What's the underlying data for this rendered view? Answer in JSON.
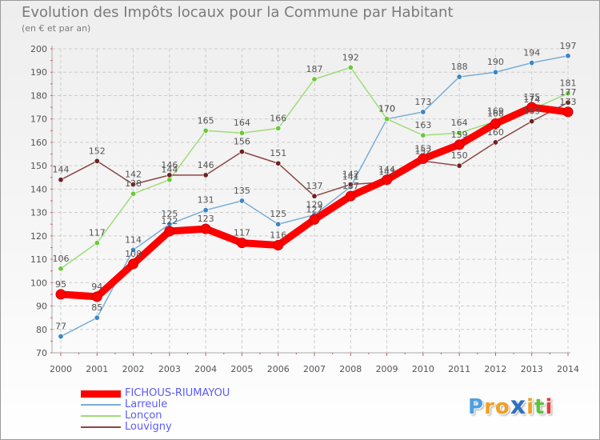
{
  "chart_data": {
    "type": "line",
    "title": "Evolution des Impôts locaux pour la Commune par Habitant",
    "subtitle": "(en € et par an)",
    "xlabel": "",
    "ylabel": "",
    "ylim": [
      70,
      200
    ],
    "yticks": [
      70,
      80,
      90,
      100,
      110,
      120,
      130,
      140,
      150,
      160,
      170,
      180,
      190,
      200
    ],
    "categories": [
      "2000",
      "2001",
      "2002",
      "2003",
      "2004",
      "2005",
      "2006",
      "2007",
      "2008",
      "2009",
      "2010",
      "2011",
      "2012",
      "2013",
      "2014"
    ],
    "grid": true,
    "legend_position": "bottom-left",
    "series": [
      {
        "name": "FICHOUS-RIUMAYOU",
        "color": "#ff0000",
        "marker_color": "#ff0000",
        "values": [
          95,
          94,
          108,
          122,
          123,
          117,
          116,
          127,
          137,
          144,
          153,
          159,
          168,
          175,
          173
        ]
      },
      {
        "name": "Larreule",
        "color": "#7aaed6",
        "marker_color": "#3a86c8",
        "values": [
          77,
          85,
          114,
          125,
          131,
          135,
          125,
          129,
          141,
          170,
          173,
          188,
          190,
          194,
          197
        ]
      },
      {
        "name": "Lonçon",
        "color": "#a0dc78",
        "marker_color": "#6cc83c",
        "values": [
          106,
          117,
          138,
          144,
          165,
          164,
          166,
          187,
          192,
          170,
          163,
          164,
          169,
          174,
          181
        ]
      },
      {
        "name": "Louvigny",
        "color": "#8c4646",
        "marker_color": "#6e2222",
        "values": [
          144,
          152,
          142,
          146,
          146,
          156,
          151,
          137,
          142,
          143,
          152,
          150,
          160,
          169,
          177
        ]
      }
    ]
  },
  "legend": {
    "items": [
      {
        "label": "FICHOUS-RIUMAYOU",
        "color": "#ff0000",
        "text_color": "#5b5bff"
      },
      {
        "label": "Larreule",
        "color": "#7aaed6",
        "text_color": "#5b5bff"
      },
      {
        "label": "Lonçon",
        "color": "#a0dc78",
        "text_color": "#5b5bff"
      },
      {
        "label": "Louvigny",
        "color": "#8c4646",
        "text_color": "#5b5bff"
      }
    ]
  },
  "logo": {
    "letters": [
      "P",
      "r",
      "o",
      "x",
      "i",
      "t",
      "i"
    ],
    "colors": [
      "#4aa0e0",
      "#f0a020",
      "#f0a020",
      "#3070c0",
      "#f0a020",
      "#60c040",
      "#e04040"
    ]
  }
}
